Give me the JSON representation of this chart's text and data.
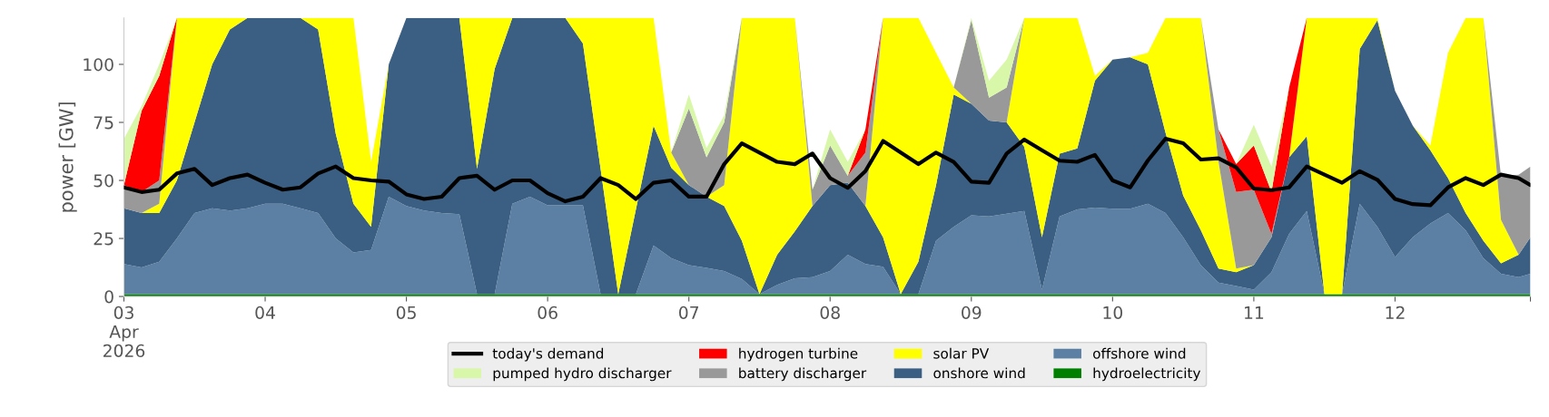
{
  "chart_data": {
    "type": "area",
    "stacked": true,
    "ylabel": "power [GW]",
    "legend": "bottom",
    "grid": false,
    "x": [
      "2026-04-03T00:00",
      "2026-04-03T03:00",
      "2026-04-03T06:00",
      "2026-04-03T09:00",
      "2026-04-03T12:00",
      "2026-04-03T15:00",
      "2026-04-03T18:00",
      "2026-04-03T21:00",
      "2026-04-04T00:00",
      "2026-04-04T03:00",
      "2026-04-04T06:00",
      "2026-04-04T09:00",
      "2026-04-04T12:00",
      "2026-04-04T15:00",
      "2026-04-04T18:00",
      "2026-04-04T21:00",
      "2026-04-05T00:00",
      "2026-04-05T03:00",
      "2026-04-05T06:00",
      "2026-04-05T09:00",
      "2026-04-05T12:00",
      "2026-04-05T15:00",
      "2026-04-05T18:00",
      "2026-04-05T21:00",
      "2026-04-06T00:00",
      "2026-04-06T03:00",
      "2026-04-06T06:00",
      "2026-04-06T09:00",
      "2026-04-06T12:00",
      "2026-04-06T15:00",
      "2026-04-06T18:00",
      "2026-04-06T21:00",
      "2026-04-07T00:00",
      "2026-04-07T03:00",
      "2026-04-07T06:00",
      "2026-04-07T09:00",
      "2026-04-07T12:00",
      "2026-04-07T15:00",
      "2026-04-07T18:00",
      "2026-04-07T21:00",
      "2026-04-08T00:00",
      "2026-04-08T03:00",
      "2026-04-08T06:00",
      "2026-04-08T09:00",
      "2026-04-08T12:00",
      "2026-04-08T15:00",
      "2026-04-08T18:00",
      "2026-04-08T21:00",
      "2026-04-09T00:00",
      "2026-04-09T03:00",
      "2026-04-09T06:00",
      "2026-04-09T09:00",
      "2026-04-09T12:00",
      "2026-04-09T15:00",
      "2026-04-09T18:00",
      "2026-04-09T21:00",
      "2026-04-10T00:00",
      "2026-04-10T03:00",
      "2026-04-10T06:00",
      "2026-04-10T09:00",
      "2026-04-10T12:00",
      "2026-04-10T15:00",
      "2026-04-10T18:00",
      "2026-04-10T21:00",
      "2026-04-11T00:00",
      "2026-04-11T03:00",
      "2026-04-11T06:00",
      "2026-04-11T09:00",
      "2026-04-11T12:00",
      "2026-04-11T15:00",
      "2026-04-11T18:00",
      "2026-04-11T21:00",
      "2026-04-12T00:00",
      "2026-04-12T03:00",
      "2026-04-12T06:00",
      "2026-04-12T09:00",
      "2026-04-12T12:00",
      "2026-04-12T15:00",
      "2026-04-12T18:00",
      "2026-04-12T21:00",
      "2026-04-12T23:00"
    ],
    "xlim": [
      "2026-04-03T00:00",
      "2026-04-12T23:00"
    ],
    "xticks": [
      {
        "value": "2026-04-03",
        "label": "03\nApr\n2026"
      },
      {
        "value": "2026-04-04",
        "label": "04"
      },
      {
        "value": "2026-04-05",
        "label": "05"
      },
      {
        "value": "2026-04-06",
        "label": "06"
      },
      {
        "value": "2026-04-07",
        "label": "07"
      },
      {
        "value": "2026-04-08",
        "label": "08"
      },
      {
        "value": "2026-04-09",
        "label": "09"
      },
      {
        "value": "2026-04-10",
        "label": "10"
      },
      {
        "value": "2026-04-11",
        "label": "11"
      },
      {
        "value": "2026-04-12",
        "label": "12"
      },
      {
        "value": "2026-04-12T23:00",
        "label": null
      }
    ],
    "ylim": [
      0,
      120
    ],
    "yticks": [
      0,
      25,
      50,
      75,
      100
    ],
    "series": [
      {
        "name": "hydroelectricity",
        "color": "#008000",
        "values": [
          1,
          1,
          1,
          1,
          1,
          1,
          1,
          1,
          1,
          1,
          1,
          1,
          1,
          1,
          1,
          1,
          1,
          1,
          1,
          1,
          1,
          1,
          1,
          1,
          1,
          1,
          1,
          1,
          1,
          1,
          1,
          1,
          1,
          1,
          1,
          1,
          1,
          1,
          1,
          1,
          1,
          1,
          1,
          1,
          1,
          1,
          1,
          1,
          1,
          1,
          1,
          1,
          1,
          1,
          1,
          1,
          1,
          1,
          1,
          1,
          1,
          1,
          1,
          1,
          1,
          1,
          1,
          1,
          1,
          1,
          1,
          1,
          1,
          1,
          1,
          1,
          1,
          1,
          1,
          1,
          1
        ]
      },
      {
        "name": "offshore wind",
        "color": "#5b80a3",
        "values": [
          13,
          11.5,
          14,
          24,
          35,
          37,
          36,
          37,
          39,
          39,
          37,
          35,
          24,
          18,
          19,
          42,
          38,
          36,
          35,
          34.5,
          0,
          0,
          39,
          42,
          38.3,
          38.3,
          38.3,
          0,
          0,
          0,
          21,
          15.5,
          12.5,
          11.3,
          10,
          6.5,
          0,
          4,
          6.8,
          7.3,
          10,
          17,
          13,
          11.8,
          0,
          0,
          23,
          29,
          34,
          33.5,
          34.7,
          35.8,
          2,
          33.5,
          36.5,
          37.3,
          36.8,
          36.8,
          39,
          35,
          24.5,
          12.5,
          5,
          3.5,
          2,
          9.5,
          26,
          35.8,
          0,
          0,
          39,
          29,
          16,
          24.5,
          30.5,
          35,
          27.5,
          15.5,
          8.8,
          7.3,
          8.8
        ]
      },
      {
        "name": "onshore wind",
        "color": "#3b5f82",
        "values": [
          24,
          23.5,
          21,
          25,
          39,
          62,
          78,
          82,
          80,
          80,
          82,
          79,
          45,
          21,
          10,
          57,
          81,
          83,
          84,
          84.5,
          54,
          97,
          80,
          77,
          80.7,
          80.7,
          69.7,
          54,
          0,
          36.5,
          51.5,
          39,
          34.5,
          30.7,
          28,
          16.5,
          0,
          13,
          20.2,
          30.7,
          37,
          31,
          25,
          12.7,
          0,
          14,
          24,
          57,
          48,
          41.3,
          39.3,
          27.7,
          22.5,
          27,
          26.3,
          54.7,
          64.2,
          65.2,
          60,
          34.5,
          18,
          15,
          6,
          6,
          10.5,
          15,
          33,
          32.2,
          0,
          0,
          66.6,
          89,
          71.6,
          48.1,
          31.5,
          15,
          7.5,
          7.5,
          4.5,
          9.7,
          15.7
        ]
      },
      {
        "name": "solar PV",
        "color": "#ffff00",
        "values": [
          null,
          0,
          4,
          70,
          45,
          20,
          5,
          0,
          null,
          null,
          0,
          5,
          50,
          80,
          28,
          0,
          null,
          null,
          null,
          0,
          65,
          22,
          0,
          null,
          null,
          0,
          11,
          65,
          119,
          82.5,
          46.5,
          6.5,
          0,
          0,
          9,
          96,
          119,
          102,
          92,
          0,
          null,
          null,
          0,
          94.5,
          119,
          105,
          57,
          3,
          0,
          null,
          0,
          55.5,
          94.5,
          58.5,
          56.2,
          2,
          0,
          0,
          5,
          49.5,
          76.5,
          91.5,
          46,
          1.5,
          0,
          null,
          0,
          51,
          119,
          119,
          13.4,
          1,
          0,
          0,
          2,
          54,
          84,
          96,
          18.7,
          0,
          null
        ]
      },
      {
        "name": "battery discharger",
        "color": "#999999",
        "values": [
          10,
          9,
          10,
          0,
          null,
          null,
          null,
          null,
          null,
          null,
          null,
          null,
          null,
          null,
          null,
          null,
          null,
          null,
          null,
          null,
          null,
          null,
          null,
          null,
          null,
          null,
          null,
          null,
          null,
          null,
          null,
          0,
          33,
          17,
          27,
          0,
          null,
          null,
          0,
          7,
          17,
          3,
          23,
          0,
          null,
          null,
          null,
          0,
          36,
          9.8,
          15,
          0,
          null,
          null,
          null,
          null,
          null,
          null,
          null,
          null,
          null,
          0,
          14,
          33,
          32.5,
          1.5,
          0,
          null,
          null,
          null,
          null,
          null,
          null,
          null,
          null,
          null,
          null,
          0,
          19,
          34.5,
          30.5
        ]
      },
      {
        "name": "hydrogen turbine",
        "color": "#ff0000",
        "values": [
          0,
          35,
          45,
          0,
          null,
          null,
          null,
          null,
          null,
          null,
          null,
          null,
          null,
          null,
          null,
          null,
          null,
          null,
          null,
          null,
          null,
          null,
          null,
          null,
          null,
          null,
          null,
          null,
          null,
          null,
          null,
          null,
          null,
          null,
          null,
          null,
          null,
          null,
          null,
          null,
          null,
          0,
          10,
          0,
          null,
          null,
          null,
          null,
          null,
          null,
          null,
          null,
          null,
          null,
          null,
          null,
          null,
          null,
          null,
          null,
          null,
          null,
          0,
          12,
          19,
          18,
          30,
          0,
          null,
          null,
          null,
          null,
          null,
          null,
          null,
          null,
          null,
          null,
          null,
          null,
          null
        ]
      },
      {
        "name": "pumped hydro discharger",
        "color": "#d9f7a9",
        "values": [
          20,
          2,
          5,
          0,
          null,
          null,
          null,
          null,
          null,
          null,
          null,
          null,
          null,
          null,
          null,
          null,
          null,
          null,
          null,
          null,
          null,
          null,
          null,
          null,
          null,
          null,
          null,
          null,
          null,
          null,
          null,
          0,
          6,
          4,
          3,
          0,
          null,
          null,
          null,
          0,
          7,
          6,
          0,
          null,
          null,
          null,
          null,
          0,
          1,
          7.4,
          12,
          0,
          null,
          null,
          null,
          null,
          null,
          null,
          null,
          null,
          null,
          null,
          null,
          0,
          9,
          11,
          0,
          null,
          null,
          null,
          null,
          null,
          null,
          null,
          null,
          null,
          null,
          null,
          null,
          null,
          null
        ]
      },
      {
        "name": "today's demand",
        "type": "line",
        "color": "#000000",
        "line_style": "solid",
        "values": [
          47,
          45,
          46,
          53,
          55,
          48,
          51,
          52.5,
          49,
          46,
          47,
          53,
          56,
          51,
          50,
          49.5,
          44,
          42,
          43,
          51,
          52,
          46,
          50,
          50,
          44.5,
          41,
          43,
          51,
          48,
          42,
          49,
          50,
          43,
          43,
          57,
          66,
          62,
          58,
          57,
          61.6,
          51,
          46.8,
          54,
          67,
          62,
          57,
          62,
          58,
          49.5,
          49,
          61.6,
          67.6,
          63,
          58.5,
          58,
          61,
          50,
          47,
          58.6,
          68,
          66,
          59,
          59.5,
          55.6,
          46.5,
          45.8,
          47,
          56,
          52.5,
          49,
          54,
          50.3,
          42,
          39.8,
          39.3,
          47,
          51,
          48,
          52.5,
          51,
          48
        ]
      }
    ]
  }
}
